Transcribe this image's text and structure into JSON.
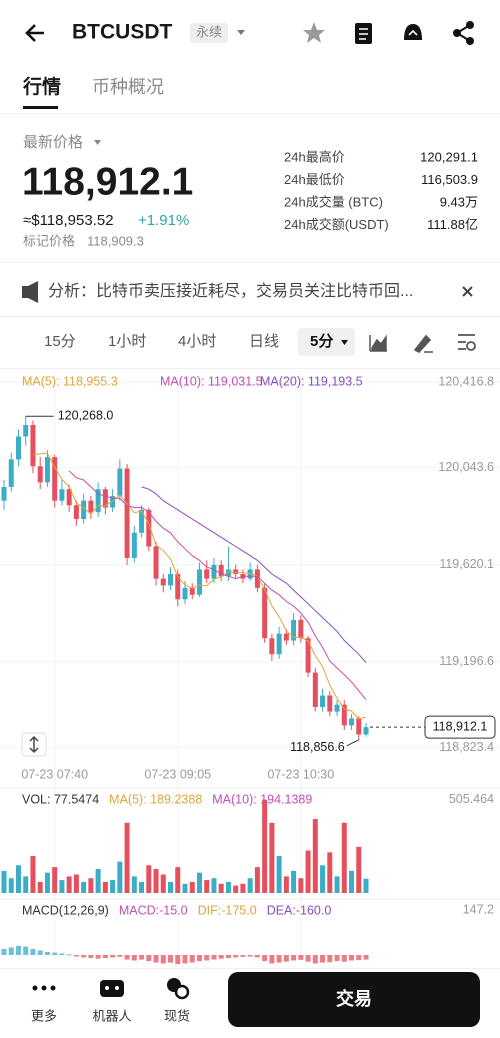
{
  "header": {
    "title": "BTCUSDT",
    "badge": "永续"
  },
  "tabs": [
    "行情",
    "币种概况"
  ],
  "price_info": {
    "label": "最新价格",
    "price": "118,912.1",
    "usd": "≈$118,953.52",
    "change": "+1.91%",
    "mark_label": "标记价格",
    "mark_price": "118,909.3"
  },
  "stats": [
    {
      "label": "24h最高价",
      "value": "120,291.1"
    },
    {
      "label": "24h最低价",
      "value": "116,503.9"
    },
    {
      "label": "24h成交量 (BTC)",
      "value": "9.43万"
    },
    {
      "label": "24h成交额(USDT)",
      "value": "111.88亿"
    }
  ],
  "analysis": "分析：比特币卖压接近耗尽，交易员关注比特币回...",
  "intervals": [
    "15分",
    "1小时",
    "4小时",
    "日线",
    "5分"
  ],
  "chart_data": [
    {
      "type": "candlestick",
      "up_color": "#3aaec6",
      "down_color": "#e5505e",
      "grid": true,
      "categories": [
        null,
        null,
        null,
        null,
        null,
        null,
        null,
        "07-23 07:40",
        null,
        null,
        null,
        null,
        null,
        null,
        null,
        null,
        null,
        null,
        null,
        null,
        null,
        null,
        null,
        null,
        "07-23 09:05",
        null,
        null,
        null,
        null,
        null,
        null,
        null,
        null,
        null,
        null,
        null,
        null,
        null,
        null,
        null,
        null,
        "07-23 10:30",
        null,
        null,
        null,
        null,
        null,
        null,
        null,
        null,
        null
      ],
      "candles": [
        [
          119900,
          119990,
          119860,
          119960
        ],
        [
          119960,
          120110,
          119940,
          120080
        ],
        [
          120080,
          120210,
          120050,
          120180
        ],
        [
          120180,
          120268,
          120140,
          120230
        ],
        [
          120230,
          120250,
          120020,
          120050
        ],
        [
          120050,
          120090,
          119950,
          119980
        ],
        [
          119980,
          120120,
          119960,
          120090
        ],
        [
          120090,
          120100,
          119870,
          119900
        ],
        [
          119900,
          119990,
          119880,
          119950
        ],
        [
          119950,
          119970,
          119850,
          119880
        ],
        [
          119880,
          119900,
          119790,
          119820
        ],
        [
          119820,
          119930,
          119800,
          119900
        ],
        [
          119900,
          119920,
          119820,
          119850
        ],
        [
          119850,
          119980,
          119830,
          119950
        ],
        [
          119950,
          119960,
          119840,
          119870
        ],
        [
          119870,
          119950,
          119850,
          119920
        ],
        [
          119920,
          120080,
          119900,
          120040
        ],
        [
          120040,
          120060,
          119620,
          119650
        ],
        [
          119650,
          119790,
          119630,
          119760
        ],
        [
          119760,
          119880,
          119740,
          119860
        ],
        [
          119860,
          119870,
          119680,
          119700
        ],
        [
          119700,
          119720,
          119530,
          119560
        ],
        [
          119560,
          119580,
          119500,
          119530
        ],
        [
          119530,
          119610,
          119510,
          119580
        ],
        [
          119580,
          119600,
          119440,
          119470
        ],
        [
          119470,
          119550,
          119450,
          119520
        ],
        [
          119520,
          119540,
          119470,
          119490
        ],
        [
          119490,
          119630,
          119480,
          119600
        ],
        [
          119600,
          119640,
          119540,
          119560
        ],
        [
          119560,
          119650,
          119540,
          119620
        ],
        [
          119620,
          119640,
          119550,
          119570
        ],
        [
          119570,
          119700,
          119550,
          119600
        ],
        [
          119600,
          119620,
          119560,
          119580
        ],
        [
          119580,
          119600,
          119540,
          119560
        ],
        [
          119560,
          119630,
          119550,
          119600
        ],
        [
          119600,
          119620,
          119500,
          119520
        ],
        [
          119520,
          119540,
          119280,
          119300
        ],
        [
          119300,
          119320,
          119200,
          119230
        ],
        [
          119230,
          119350,
          119210,
          119320
        ],
        [
          119320,
          119340,
          119270,
          119290
        ],
        [
          119290,
          119410,
          119270,
          119380
        ],
        [
          119380,
          119400,
          119280,
          119300
        ],
        [
          119300,
          119310,
          119130,
          119150
        ],
        [
          119150,
          119170,
          118980,
          119000
        ],
        [
          119000,
          119080,
          118980,
          119050
        ],
        [
          119050,
          119070,
          118960,
          118980
        ],
        [
          118980,
          119030,
          118960,
          119010
        ],
        [
          119010,
          119030,
          118900,
          118920
        ],
        [
          118920,
          118970,
          118900,
          118950
        ],
        [
          118950,
          118960,
          118856.6,
          118880
        ],
        [
          118880,
          118930,
          118870,
          118912.1
        ]
      ],
      "series": [
        {
          "name": "MA(5): 118,955.3",
          "color": "#e0a53a",
          "values": [
            null,
            null,
            null,
            null,
            120100,
            120104,
            120106,
            120046,
            119994,
            119960,
            119890,
            119870,
            119840,
            119880,
            119878,
            119898,
            119926,
            119886,
            119848,
            119854,
            119800,
            119706,
            119682,
            119646,
            119568,
            119532,
            119518,
            119532,
            119528,
            119558,
            119568,
            119590,
            119586,
            119586,
            119582,
            119572,
            119512,
            119442,
            119394,
            119332,
            119304,
            119304,
            119288,
            119224,
            119176,
            119096,
            119038,
            118992,
            118982,
            118948,
            118955.3
          ]
        },
        {
          "name": "MA(10): 119,031.5",
          "color": "#c24fb3",
          "values": [
            null,
            null,
            null,
            null,
            null,
            null,
            null,
            null,
            null,
            120030,
            120000,
            119990,
            119960,
            119930,
            119920,
            119910,
            119910,
            119880,
            119870,
            119870,
            119850,
            119810,
            119780,
            119760,
            119720,
            119690,
            119660,
            119640,
            119610,
            119600,
            119580,
            119570,
            119560,
            119570,
            119570,
            119570,
            119540,
            119510,
            119490,
            119460,
            119440,
            119410,
            119370,
            119310,
            119260,
            119200,
            119170,
            119140,
            119110,
            119070,
            119031.5
          ]
        },
        {
          "name": "MA(20): 119,193.5",
          "color": "#8c4cbf",
          "values": [
            null,
            null,
            null,
            null,
            null,
            null,
            null,
            null,
            null,
            null,
            null,
            null,
            null,
            null,
            null,
            null,
            null,
            null,
            null,
            119960,
            119950,
            119930,
            119900,
            119880,
            119860,
            119840,
            119820,
            119800,
            119780,
            119760,
            119740,
            119720,
            119700,
            119680,
            119660,
            119640,
            119610,
            119580,
            119560,
            119540,
            119510,
            119480,
            119450,
            119420,
            119390,
            119360,
            119330,
            119290,
            119260,
            119230,
            119193.5
          ]
        }
      ],
      "ylim": [
        118760,
        120470
      ],
      "yticks": [
        {
          "value": 120416.8,
          "label": "120,416.8"
        },
        {
          "value": 120043.6,
          "label": "120,043.6"
        },
        {
          "value": 119620.1,
          "label": "119,620.1"
        },
        {
          "value": 119196.6,
          "label": "119,196.6"
        },
        {
          "value": 118823.4,
          "label": "118,823.4"
        }
      ],
      "annotations": {
        "high": {
          "value": 120268,
          "label": "120,268.0"
        },
        "low": {
          "value": 118856.6,
          "label": "118,856.6"
        },
        "last": {
          "value": 118912.1,
          "label": "118,912.1"
        }
      }
    },
    {
      "type": "bar",
      "legend": [
        {
          "text": "VOL: 77.5474",
          "color": "#333333"
        },
        {
          "text": "MA(5): 189.2388",
          "color": "#e0a53a"
        },
        {
          "text": "MA(10): 194.1389",
          "color": "#c24fb3"
        }
      ],
      "values": [
        120,
        80,
        150,
        90,
        200,
        60,
        110,
        140,
        70,
        90,
        100,
        60,
        80,
        130,
        60,
        70,
        170,
        380,
        90,
        60,
        150,
        130,
        100,
        60,
        140,
        50,
        60,
        110,
        70,
        80,
        50,
        60,
        40,
        50,
        80,
        140,
        505,
        380,
        200,
        90,
        120,
        80,
        230,
        400,
        150,
        220,
        90,
        380,
        120,
        250,
        77.5474
      ],
      "ylim": [
        0,
        525
      ],
      "yticks": [
        505.464
      ]
    },
    {
      "type": "bar",
      "legend": [
        {
          "text": "MACD(12,26,9)",
          "color": "#333333"
        },
        {
          "text": "MACD:-15.0",
          "color": "#c24fb3"
        },
        {
          "text": "DIF:-175.0",
          "color": "#e0a53a"
        },
        {
          "text": "DEA:-160.0",
          "color": "#8c4cbf"
        }
      ],
      "values": [
        20,
        25,
        30,
        28,
        20,
        15,
        10,
        8,
        5,
        2,
        -5,
        -8,
        -10,
        -12,
        -10,
        -8,
        -6,
        -15,
        -18,
        -15,
        -20,
        -25,
        -28,
        -25,
        -30,
        -28,
        -25,
        -20,
        -18,
        -15,
        -12,
        -10,
        -8,
        -6,
        -5,
        -8,
        -20,
        -28,
        -25,
        -22,
        -18,
        -16,
        -22,
        -28,
        -25,
        -24,
        -20,
        -22,
        -18,
        -17,
        -15
      ],
      "ylim": [
        -66,
        165
      ],
      "yticks": [
        147.2
      ]
    }
  ],
  "bottom_nav": {
    "items": [
      "更多",
      "机器人",
      "现货"
    ],
    "button": "交易"
  }
}
